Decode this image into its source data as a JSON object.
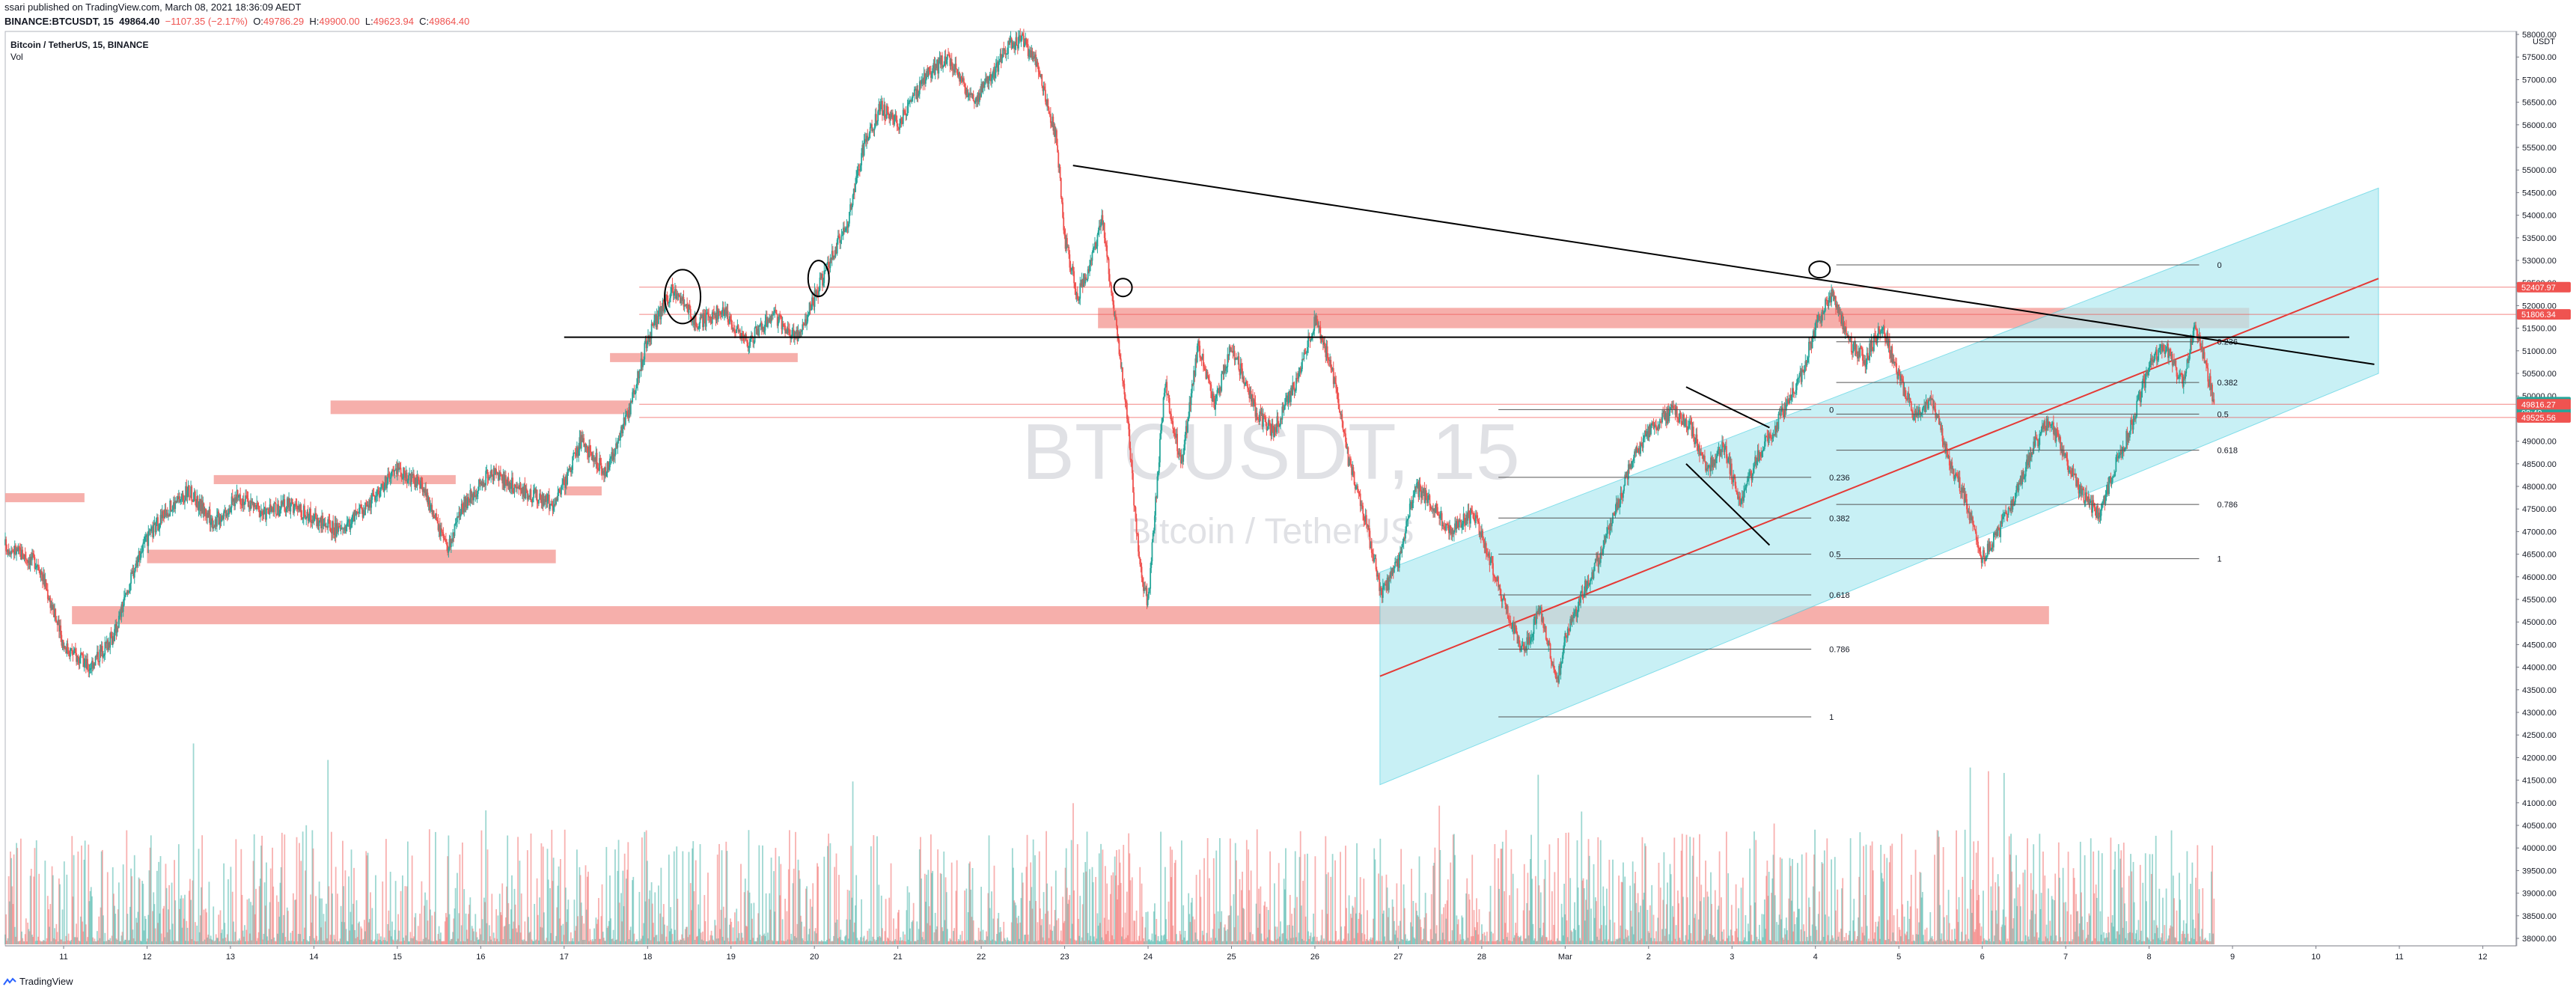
{
  "header": {
    "publish_line": "ssari published on TradingView.com, March 08, 2021 18:36:09 AEDT",
    "symbol_line": "BINANCE:BTCUSDT, 15",
    "last_price": "49864.40",
    "change": "−1107.35 (−2.17%)",
    "o_label": "O:",
    "o_value": "49786.29",
    "h_label": "H:",
    "h_value": "49900.00",
    "l_label": "L:",
    "l_value": "49623.94",
    "c_label": "C:",
    "c_value": "49864.40"
  },
  "legend": {
    "title": "Bitcoin / TetherUS, 15, BINANCE",
    "volume": "Vol"
  },
  "watermark": {
    "symbol": "BTCUSDT, 15",
    "description": "Bitcoin / TetherUS"
  },
  "footer": {
    "brand": "TradingView"
  },
  "colors": {
    "up": "#26a69a",
    "down": "#ef5350",
    "zone": "#f4a19c",
    "channel": "#b2ebf2",
    "trendline": "#000000",
    "regression": "#e53935"
  },
  "chart_data": {
    "type": "candlestick",
    "title": "Bitcoin / TetherUS, 15, BINANCE",
    "timeframe": "15",
    "ylabel": "USDT",
    "ylim": [
      38000,
      58000
    ],
    "y_ticks": [
      58000,
      57500,
      57000,
      56500,
      56000,
      55500,
      55000,
      54500,
      54000,
      53500,
      53000,
      52500,
      52000,
      51500,
      51000,
      50500,
      50000,
      49500,
      49000,
      48500,
      48000,
      47500,
      47000,
      46500,
      46000,
      45500,
      45000,
      44500,
      44000,
      43500,
      43000,
      42500,
      42000,
      41500,
      41000,
      40500,
      40000,
      39500,
      39000,
      38500,
      38000
    ],
    "y_tick_labels": [
      "58000.00",
      "57500.00",
      "57000.00",
      "56500.00",
      "56000.00",
      "55500.00",
      "55000.00",
      "54500.00",
      "54000.00",
      "53500.00",
      "53000.00",
      "52500.00",
      "52000.00",
      "51500.00",
      "51000.00",
      "50500.00",
      "50000.00",
      "49500.00",
      "49000.00",
      "48500.00",
      "48000.00",
      "47500.00",
      "47000.00",
      "46500.00",
      "46000.00",
      "45500.00",
      "45000.00",
      "44500.00",
      "44000.00",
      "43500.00",
      "43000.00",
      "42500.00",
      "42000.00",
      "41500.00",
      "41000.00",
      "40500.00",
      "40000.00",
      "39500.00",
      "39000.00",
      "38500.00",
      "38000.00"
    ],
    "x_day_labels": [
      "11",
      "12",
      "13",
      "14",
      "15",
      "16",
      "17",
      "18",
      "19",
      "20",
      "21",
      "22",
      "23",
      "24",
      "25",
      "26",
      "27",
      "28",
      "Mar",
      "2",
      "3",
      "4",
      "5",
      "6",
      "7",
      "8",
      "9",
      "10",
      "11",
      "12"
    ],
    "x_day_values": [
      11,
      12,
      13,
      14,
      15,
      16,
      17,
      18,
      19,
      20,
      21,
      22,
      23,
      24,
      25,
      26,
      27,
      28,
      29,
      30,
      31,
      32,
      33,
      34,
      35,
      36,
      37,
      38,
      39,
      40
    ],
    "x_range": [
      10.3,
      40.4
    ],
    "last_bar_x": 36.78,
    "price_path": [
      [
        10.3,
        46700
      ],
      [
        10.7,
        46300
      ],
      [
        11.0,
        44500
      ],
      [
        11.3,
        44000
      ],
      [
        11.6,
        44700
      ],
      [
        11.9,
        46500
      ],
      [
        12.2,
        47400
      ],
      [
        12.5,
        47900
      ],
      [
        12.8,
        47200
      ],
      [
        13.1,
        47800
      ],
      [
        13.4,
        47400
      ],
      [
        13.7,
        47600
      ],
      [
        14.0,
        47300
      ],
      [
        14.3,
        47000
      ],
      [
        14.6,
        47500
      ],
      [
        15.0,
        48400
      ],
      [
        15.3,
        48000
      ],
      [
        15.6,
        46600
      ],
      [
        15.8,
        47600
      ],
      [
        16.1,
        48300
      ],
      [
        16.5,
        47900
      ],
      [
        16.9,
        47600
      ],
      [
        17.2,
        49000
      ],
      [
        17.5,
        48300
      ],
      [
        17.8,
        49800
      ],
      [
        18.0,
        51300
      ],
      [
        18.3,
        52400
      ],
      [
        18.6,
        51600
      ],
      [
        18.9,
        51900
      ],
      [
        19.2,
        51200
      ],
      [
        19.5,
        51800
      ],
      [
        19.8,
        51300
      ],
      [
        20.1,
        52600
      ],
      [
        20.4,
        53900
      ],
      [
        20.6,
        55600
      ],
      [
        20.8,
        56400
      ],
      [
        21.0,
        56000
      ],
      [
        21.3,
        57000
      ],
      [
        21.6,
        57500
      ],
      [
        21.9,
        56500
      ],
      [
        22.1,
        57000
      ],
      [
        22.3,
        57700
      ],
      [
        22.5,
        57900
      ],
      [
        22.7,
        57200
      ],
      [
        22.9,
        55700
      ],
      [
        23.0,
        53500
      ],
      [
        23.15,
        52200
      ],
      [
        23.3,
        52900
      ],
      [
        23.45,
        53900
      ],
      [
        23.6,
        51800
      ],
      [
        23.75,
        49500
      ],
      [
        23.9,
        46200
      ],
      [
        24.0,
        45400
      ],
      [
        24.2,
        50300
      ],
      [
        24.4,
        48500
      ],
      [
        24.6,
        51100
      ],
      [
        24.8,
        49800
      ],
      [
        25.0,
        51100
      ],
      [
        25.3,
        49600
      ],
      [
        25.5,
        49200
      ],
      [
        25.8,
        50400
      ],
      [
        26.0,
        51700
      ],
      [
        26.2,
        50600
      ],
      [
        26.4,
        48600
      ],
      [
        26.6,
        47300
      ],
      [
        26.8,
        45600
      ],
      [
        27.0,
        46300
      ],
      [
        27.2,
        48000
      ],
      [
        27.4,
        47600
      ],
      [
        27.6,
        47000
      ],
      [
        27.9,
        47400
      ],
      [
        28.1,
        46400
      ],
      [
        28.3,
        45200
      ],
      [
        28.5,
        44300
      ],
      [
        28.7,
        45300
      ],
      [
        28.9,
        43600
      ],
      [
        29.0,
        44600
      ],
      [
        29.2,
        45600
      ],
      [
        29.4,
        46400
      ],
      [
        29.6,
        47400
      ],
      [
        29.8,
        48600
      ],
      [
        30.0,
        49200
      ],
      [
        30.3,
        49700
      ],
      [
        30.5,
        49300
      ],
      [
        30.7,
        48400
      ],
      [
        30.9,
        48900
      ],
      [
        31.1,
        47600
      ],
      [
        31.3,
        48600
      ],
      [
        31.6,
        49600
      ],
      [
        31.8,
        50300
      ],
      [
        32.0,
        51500
      ],
      [
        32.2,
        52300
      ],
      [
        32.4,
        51200
      ],
      [
        32.6,
        50800
      ],
      [
        32.8,
        51600
      ],
      [
        33.0,
        50400
      ],
      [
        33.2,
        49500
      ],
      [
        33.4,
        49900
      ],
      [
        33.6,
        48600
      ],
      [
        33.8,
        47700
      ],
      [
        34.0,
        46400
      ],
      [
        34.2,
        47000
      ],
      [
        34.4,
        47800
      ],
      [
        34.6,
        48800
      ],
      [
        34.8,
        49500
      ],
      [
        35.0,
        48600
      ],
      [
        35.2,
        47800
      ],
      [
        35.4,
        47400
      ],
      [
        35.6,
        48500
      ],
      [
        35.8,
        49400
      ],
      [
        36.0,
        50700
      ],
      [
        36.2,
        51100
      ],
      [
        36.4,
        50300
      ],
      [
        36.55,
        51600
      ],
      [
        36.7,
        50500
      ],
      [
        36.78,
        49864
      ]
    ],
    "horizontal_lines": [
      {
        "price": 52407.97,
        "label": "52407.97",
        "color": "#ef5350"
      },
      {
        "price": 51806.34,
        "label": "51806.34",
        "color": "#ef5350"
      },
      {
        "price": 49864.4,
        "label": "49864.40",
        "sublabel": "08:49",
        "color": "#26a69a"
      },
      {
        "price": 49816.27,
        "label": "49816.27",
        "color": "#ef5350"
      },
      {
        "price": 49525.56,
        "label": "49525.56",
        "color": "#ef5350"
      }
    ],
    "zones": [
      {
        "x0": 10.3,
        "x1": 11.25,
        "p0": 47850,
        "p1": 47650
      },
      {
        "x0": 12.0,
        "x1": 16.9,
        "p0": 46600,
        "p1": 46300
      },
      {
        "x0": 12.8,
        "x1": 15.7,
        "p0": 48250,
        "p1": 48050
      },
      {
        "x0": 14.2,
        "x1": 17.8,
        "p0": 49900,
        "p1": 49600
      },
      {
        "x0": 17.0,
        "x1": 17.45,
        "p0": 48000,
        "p1": 47800
      },
      {
        "x0": 17.55,
        "x1": 19.8,
        "p0": 50950,
        "p1": 50750
      },
      {
        "x0": 11.1,
        "x1": 34.8,
        "p0": 45350,
        "p1": 44950
      },
      {
        "x0": 23.4,
        "x1": 37.2,
        "p0": 51950,
        "p1": 51500
      }
    ],
    "trend_lines": [
      {
        "x0": 17.0,
        "p0": 51300,
        "x1": 38.4,
        "p1": 51300
      },
      {
        "x0": 23.1,
        "p0": 55100,
        "x1": 38.7,
        "p1": 50700
      },
      {
        "x0": 30.45,
        "p0": 50200,
        "x1": 31.45,
        "p1": 49300
      },
      {
        "x0": 30.45,
        "p0": 48500,
        "x1": 31.45,
        "p1": 46700
      }
    ],
    "channel": {
      "x0": 26.78,
      "x1": 38.75,
      "lower0": 41400,
      "lower1": 50500,
      "upper0": 46100,
      "upper1": 54600
    },
    "regression": {
      "x0": 26.78,
      "p0": 43800,
      "x1": 38.75,
      "p1": 52600
    },
    "fib_left": {
      "x0": 28.2,
      "x1": 31.95,
      "levels": [
        {
          "ratio": "0",
          "price": 49700
        },
        {
          "ratio": "0.236",
          "price": 48200
        },
        {
          "ratio": "0.382",
          "price": 47300
        },
        {
          "ratio": "0.5",
          "price": 46500
        },
        {
          "ratio": "0.618",
          "price": 45600
        },
        {
          "ratio": "0.786",
          "price": 44400
        },
        {
          "ratio": "1",
          "price": 42900
        }
      ]
    },
    "fib_right": {
      "x0": 32.25,
      "x1": 36.6,
      "levels": [
        {
          "ratio": "0",
          "price": 52900
        },
        {
          "ratio": "0.236",
          "price": 51200
        },
        {
          "ratio": "0.382",
          "price": 50300
        },
        {
          "ratio": "0.5",
          "price": 49600
        },
        {
          "ratio": "0.618",
          "price": 48800
        },
        {
          "ratio": "0.786",
          "price": 47600
        },
        {
          "ratio": "1",
          "price": 46400
        }
      ]
    },
    "circles": [
      {
        "x": 18.42,
        "p": 52200,
        "rx": 24,
        "ry": 36
      },
      {
        "x": 20.05,
        "p": 52600,
        "rx": 14,
        "ry": 24
      },
      {
        "x": 23.7,
        "p": 52400,
        "rx": 12,
        "ry": 12
      },
      {
        "x": 32.05,
        "p": 52800,
        "rx": 14,
        "ry": 11
      }
    ]
  }
}
